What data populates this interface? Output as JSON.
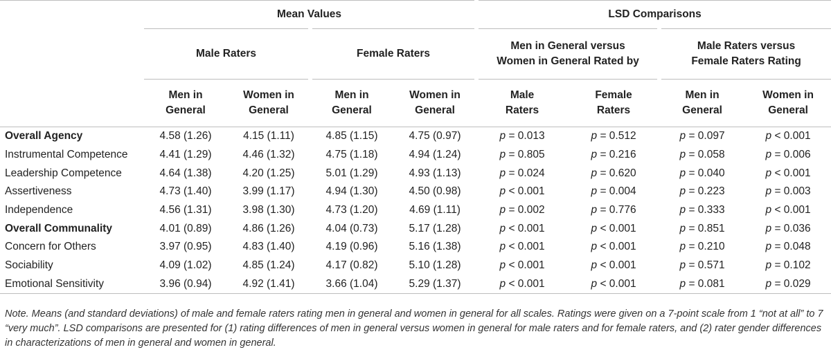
{
  "header": {
    "group_mean": "Mean Values",
    "group_lsd": "LSD Comparisons",
    "male_raters": "Male Raters",
    "female_raters": "Female Raters",
    "men_vs_women_line1": "Men in General versus",
    "men_vs_women_line2": "Women in General Rated by",
    "male_vs_female_line1": "Male Raters versus",
    "male_vs_female_line2": "Female Raters Rating",
    "col_men_line1": "Men in",
    "col_men_line2": "General",
    "col_women_line1": "Women in",
    "col_women_line2": "General",
    "col_male_line1": "Male",
    "col_male_line2": "Raters",
    "col_female_line1": "Female",
    "col_female_line2": "Raters"
  },
  "p_symbol": "p",
  "rows": [
    {
      "label": "Overall Agency",
      "bold": true,
      "m_men": "4.58 (1.26)",
      "m_women": "4.15 (1.11)",
      "f_men": "4.85 (1.15)",
      "f_women": "4.75 (0.97)",
      "lsd1": "= 0.013",
      "lsd2": "= 0.512",
      "lsd3": "= 0.097",
      "lsd4": "< 0.001"
    },
    {
      "label": "Instrumental Competence",
      "bold": false,
      "m_men": "4.41 (1.29)",
      "m_women": "4.46 (1.32)",
      "f_men": "4.75 (1.18)",
      "f_women": "4.94 (1.24)",
      "lsd1": "= 0.805",
      "lsd2": "= 0.216",
      "lsd3": "= 0.058",
      "lsd4": "= 0.006"
    },
    {
      "label": "Leadership Competence",
      "bold": false,
      "m_men": "4.64 (1.38)",
      "m_women": "4.20 (1.25)",
      "f_men": "5.01 (1.29)",
      "f_women": "4.93 (1.13)",
      "lsd1": "= 0.024",
      "lsd2": "= 0.620",
      "lsd3": "= 0.040",
      "lsd4": "< 0.001"
    },
    {
      "label": "Assertiveness",
      "bold": false,
      "m_men": "4.73 (1.40)",
      "m_women": "3.99 (1.17)",
      "f_men": "4.94 (1.30)",
      "f_women": "4.50 (0.98)",
      "lsd1": "< 0.001",
      "lsd2": "= 0.004",
      "lsd3": "= 0.223",
      "lsd4": "= 0.003"
    },
    {
      "label": "Independence",
      "bold": false,
      "m_men": "4.56 (1.31)",
      "m_women": "3.98 (1.30)",
      "f_men": "4.73 (1.20)",
      "f_women": "4.69 (1.11)",
      "lsd1": "= 0.002",
      "lsd2": "= 0.776",
      "lsd3": "= 0.333",
      "lsd4": "< 0.001"
    },
    {
      "label": "Overall Communality",
      "bold": true,
      "m_men": "4.01 (0.89)",
      "m_women": "4.86 (1.26)",
      "f_men": "4.04 (0.73)",
      "f_women": "5.17 (1.28)",
      "lsd1": "< 0.001",
      "lsd2": "< 0.001",
      "lsd3": "= 0.851",
      "lsd4": "= 0.036"
    },
    {
      "label": "Concern for Others",
      "bold": false,
      "m_men": "3.97 (0.95)",
      "m_women": "4.83 (1.40)",
      "f_men": "4.19 (0.96)",
      "f_women": "5.16 (1.38)",
      "lsd1": "< 0.001",
      "lsd2": "< 0.001",
      "lsd3": "= 0.210",
      "lsd4": "= 0.048"
    },
    {
      "label": "Sociability",
      "bold": false,
      "m_men": "4.09 (1.02)",
      "m_women": "4.85 (1.24)",
      "f_men": "4.17 (0.82)",
      "f_women": "5.10 (1.28)",
      "lsd1": "< 0.001",
      "lsd2": "< 0.001",
      "lsd3": "= 0.571",
      "lsd4": "= 0.102"
    },
    {
      "label": "Emotional Sensitivity",
      "bold": false,
      "m_men": "3.96 (0.94)",
      "m_women": "4.92 (1.41)",
      "f_men": "3.66 (1.04)",
      "f_women": "5.29 (1.37)",
      "lsd1": "< 0.001",
      "lsd2": "< 0.001",
      "lsd3": "= 0.081",
      "lsd4": "= 0.029"
    }
  ],
  "note": "Note. Means (and standard deviations) of male and female raters rating men in general and women in general for all scales. Ratings were given on a 7-point scale from 1 “not at all” to 7 “very much”. LSD comparisons are presented for (1) rating differences of men in general versus women in general for male raters and for female raters, and (2) rater gender differences in characterizations of men in general and women in general."
}
